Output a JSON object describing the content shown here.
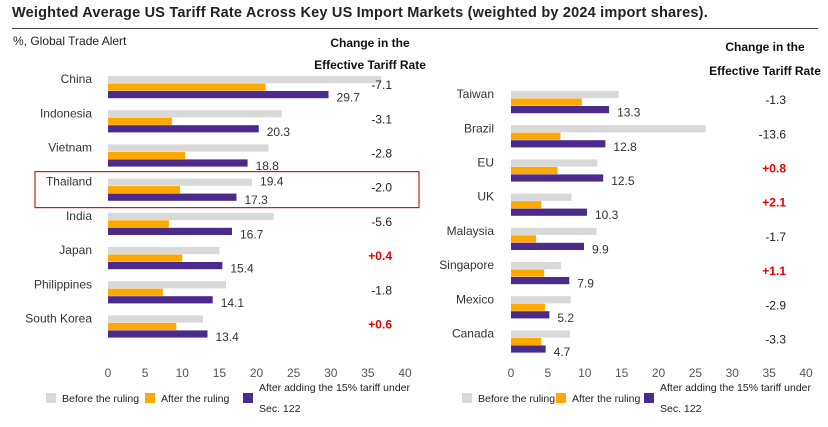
{
  "title": "Weighted Average US Tariff Rate Across Key US Import Markets (weighted by 2024 import shares).",
  "subtitle": "%, Global Trade Alert",
  "change_header_line1": "Change in the",
  "change_header_line2": "Effective Tariff Rate",
  "legend": {
    "before": "Before the ruling",
    "after": "After the ruling",
    "s122_line1": "After adding the 15% tariff under",
    "s122_line2": "Sec. 122"
  },
  "colors": {
    "before": "#d9d9d9",
    "after": "#ffa800",
    "s122": "#4b2a8c",
    "increase": "#e00000",
    "highlight": "#c0201e"
  },
  "chart_data": [
    {
      "type": "bar",
      "orientation": "horizontal",
      "xlim": [
        0,
        40
      ],
      "xticks": [
        0,
        5,
        10,
        15,
        20,
        25,
        30,
        35,
        40
      ],
      "highlighted": "Thailand",
      "categories": [
        "China",
        "Indonesia",
        "Vietnam",
        "Thailand",
        "India",
        "Japan",
        "Philippines",
        "South Korea"
      ],
      "series": [
        {
          "name": "Before the ruling",
          "values": [
            36.8,
            23.4,
            21.6,
            19.4,
            22.3,
            15.0,
            15.9,
            12.8
          ]
        },
        {
          "name": "After the ruling",
          "values": [
            21.2,
            8.6,
            10.4,
            9.7,
            8.2,
            10.0,
            7.4,
            9.2
          ]
        },
        {
          "name": "After adding the 15% tariff under Sec. 122",
          "values": [
            29.7,
            20.3,
            18.8,
            17.3,
            16.7,
            15.4,
            14.1,
            13.4
          ]
        }
      ],
      "labels_before": [
        "",
        "",
        "",
        "19.4",
        "",
        "",
        "",
        ""
      ],
      "labels_s122": [
        "29.7",
        "20.3",
        "18.8",
        "17.3",
        "16.7",
        "15.4",
        "14.1",
        "13.4"
      ],
      "change": [
        "-7.1",
        "-3.1",
        "-2.8",
        "-2.0",
        "-5.6",
        "+0.4",
        "-1.8",
        "+0.6"
      ]
    },
    {
      "type": "bar",
      "orientation": "horizontal",
      "xlim": [
        0,
        40
      ],
      "xticks": [
        0,
        5,
        10,
        15,
        20,
        25,
        30,
        35,
        40
      ],
      "categories": [
        "Taiwan",
        "Brazil",
        "EU",
        "UK",
        "Malaysia",
        "Singapore",
        "Mexico",
        "Canada"
      ],
      "series": [
        {
          "name": "Before the ruling",
          "values": [
            14.6,
            26.4,
            11.7,
            8.2,
            11.6,
            6.8,
            8.1,
            8.0
          ]
        },
        {
          "name": "After the ruling",
          "values": [
            9.6,
            6.7,
            6.3,
            4.1,
            3.4,
            4.5,
            4.6,
            4.1
          ]
        },
        {
          "name": "After adding the 15% tariff under Sec. 122",
          "values": [
            13.3,
            12.8,
            12.5,
            10.3,
            9.9,
            7.9,
            5.2,
            4.7
          ]
        }
      ],
      "labels_before": [
        "",
        "",
        "",
        "",
        "",
        "",
        "",
        ""
      ],
      "labels_s122": [
        "13.3",
        "12.8",
        "12.5",
        "10.3",
        "9.9",
        "7.9",
        "5.2",
        "4.7"
      ],
      "change": [
        "-1.3",
        "-13.6",
        "+0.8",
        "+2.1",
        "-1.7",
        "+1.1",
        "-2.9",
        "-3.3"
      ]
    }
  ]
}
